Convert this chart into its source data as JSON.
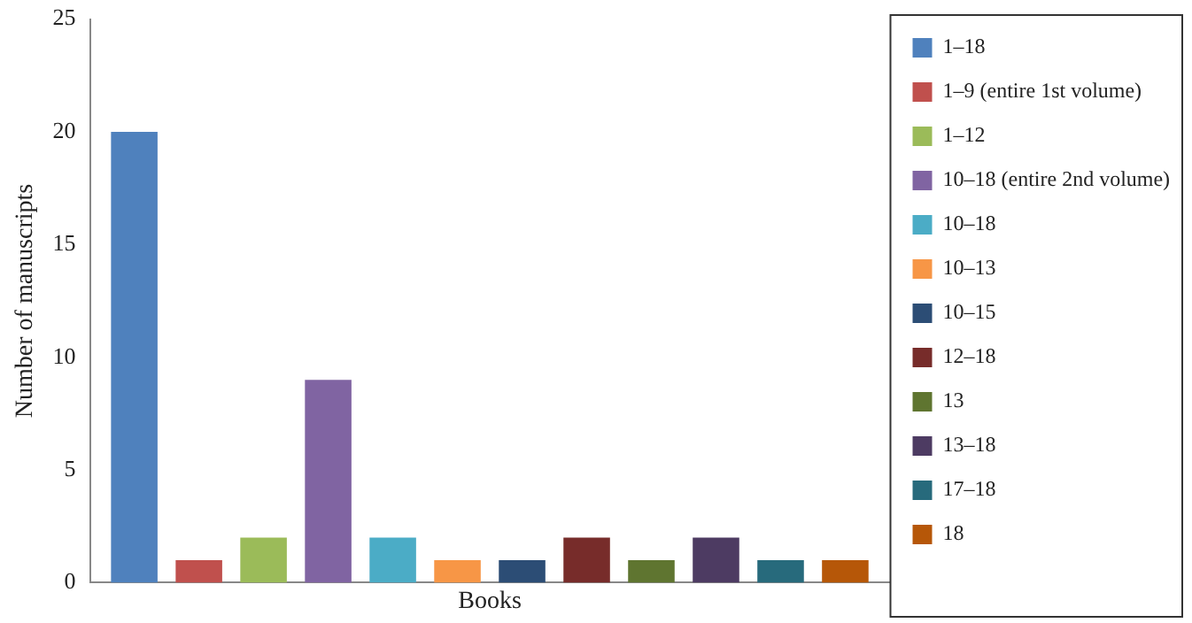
{
  "chart_data": {
    "type": "bar",
    "ylabel": "Number of manuscripts",
    "categories": [
      "Books"
    ],
    "series": [
      {
        "name": "1–18",
        "color": "#4f81bd",
        "values": [
          20
        ]
      },
      {
        "name": "1–9 (entire 1st volume)",
        "color": "#c0504d",
        "values": [
          1
        ]
      },
      {
        "name": "1–12",
        "color": "#9bbb59",
        "values": [
          2
        ]
      },
      {
        "name": "10–18 (entire 2nd volume)",
        "color": "#8064a2",
        "values": [
          9
        ]
      },
      {
        "name": "10–18",
        "color": "#4bacc6",
        "values": [
          2
        ]
      },
      {
        "name": "10–13",
        "color": "#f79646",
        "values": [
          1
        ]
      },
      {
        "name": "10–15",
        "color": "#2c4d75",
        "values": [
          1
        ]
      },
      {
        "name": "12–18",
        "color": "#772c2a",
        "values": [
          2
        ]
      },
      {
        "name": "13",
        "color": "#5f7530",
        "values": [
          1
        ]
      },
      {
        "name": "13–18",
        "color": "#4d3b62",
        "values": [
          2
        ]
      },
      {
        "name": "17–18",
        "color": "#276a7c",
        "values": [
          1
        ]
      },
      {
        "name": "18",
        "color": "#b65708",
        "values": [
          1
        ]
      }
    ],
    "ylim": [
      0,
      25
    ],
    "yticks": [
      0,
      5,
      10,
      15,
      20,
      25
    ],
    "grid": false,
    "legend": "right"
  }
}
